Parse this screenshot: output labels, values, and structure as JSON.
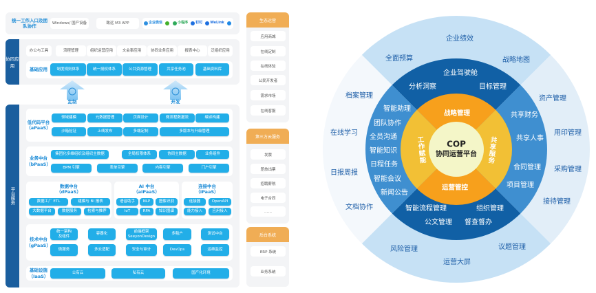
{
  "top_entry": {
    "title": "统一工作入口及团队协作",
    "devices": [
      "Windows/ 国产设备",
      "致远 M3 APP"
    ],
    "channels": [
      "企业微信",
      "小程序",
      "钉钉",
      "WeLink"
    ],
    "channel_icons": [
      "wecom-icon",
      "wechat-icon",
      "miniprogram-icon",
      "dingtalk-icon",
      "welink-icon",
      "feishu-icon"
    ]
  },
  "collab": {
    "tab": "协同应用",
    "apps": [
      "办公与工具",
      "流程管理",
      "组织运营应用",
      "文会事应用",
      "协同业务应用",
      "报表中心",
      "泛组织应用"
    ],
    "base_label": "基础应用",
    "base": [
      "制度规则体系",
      "统一授权体系",
      "公共资源管理",
      "共享任务池",
      "基础资料库"
    ]
  },
  "arrows": [
    "定制",
    "开发"
  ],
  "platform": {
    "tab": "平台服务",
    "apaas": {
      "label": "低代码平台",
      "sub": "（aPaaS）",
      "items": [
        "领域建模",
        "元数据管理",
        "页面设计",
        "微流程数据流",
        "编译构建",
        "沙箱验证",
        "上线发布",
        "多端定制",
        "多版本与升级管理"
      ]
    },
    "bpaas": {
      "label": "业务中台",
      "sub": "（bPaaS）",
      "items": [
        "集团化多维组织及组织主数据",
        "全局权限体系",
        "协同主数据",
        "业务组件",
        "BPM 引擎",
        "表单引擎",
        "内容引擎",
        "门户引擎"
      ]
    },
    "dpaas": {
      "label": "数据中台",
      "sub": "（dPaaS）",
      "items": [
        "数据工厂 ETL",
        "建模与 BI 报表",
        "大数据平台",
        "数据服务",
        "检索与推荐"
      ]
    },
    "aipaas": {
      "label": "AI 中台",
      "sub": "（aiPaaS）",
      "items": [
        "语音助手",
        "NLP",
        "图像识别",
        "IoT",
        "RPA",
        "知识图谱"
      ]
    },
    "ipaas": {
      "label": "连接中台",
      "sub": "（iPaaS）",
      "items": [
        "连接器",
        "OpenAPI",
        "能力接入",
        "应用接入"
      ]
    },
    "gpaas": {
      "label": "技术中台",
      "sub": "（gPaaS）",
      "items": [
        "统一架构\n及组件",
        "容器化",
        "前端框架\nSeeyonDesign",
        "多租户",
        "测试中台",
        "微服务",
        "多云适配",
        "安全与审计",
        "DevOps",
        "运维监控"
      ]
    },
    "iaas": {
      "label": "基础设施",
      "sub": "（IaaS）",
      "items": [
        "公有云",
        "私有云",
        "国产化环境"
      ]
    }
  },
  "side": {
    "eco": {
      "title": "生态运营",
      "items": [
        "应用商城",
        "在线定制",
        "在线体验",
        "公民开发者",
        "需求市场",
        "在线客服"
      ]
    },
    "third": {
      "title": "第三方云服务",
      "items": [
        "发票",
        "差旅出票",
        "招聘薪税",
        "电子合同",
        "……"
      ]
    },
    "backend": {
      "title": "后台系统",
      "items": [
        "ERP 系统",
        "业务系统"
      ]
    }
  },
  "wheel": {
    "center": {
      "line1": "COP",
      "line2": "协同运营平台"
    },
    "core": [
      "战略管理",
      "共享服务",
      "运营管控",
      "工作赋能"
    ],
    "middle": {
      "top": [
        "企业驾驶舱",
        "分析洞察",
        "目标管理"
      ],
      "left": [
        "智能助理",
        "团队协作",
        "全员沟通",
        "智能知识",
        "日程任务",
        "智能会议",
        "新闻公告"
      ],
      "right": [
        "共享财务",
        "共享人事",
        "合同管理",
        "项目管理"
      ],
      "bottom": [
        "智能流程管理",
        "组织管理",
        "公文管理",
        "督查督办"
      ]
    },
    "outer": {
      "top": [
        "企业绩效",
        "全面预算",
        "战略地图"
      ],
      "left": [
        "档案管理",
        "在线学习",
        "日报周报",
        "文档协作"
      ],
      "right": [
        "资产管理",
        "用印管理",
        "采购管理",
        "接待管理"
      ],
      "bottom": [
        "风险管理",
        "议题管理",
        "运营大屏"
      ]
    },
    "colors": {
      "outer_tb": "#c6e1f5",
      "outer_left": "#f4f8fc",
      "outer_right": "#e2eef8",
      "mid_tb": "#1160a5",
      "mid_lr": "#3f8fd0",
      "core_tb": "#f7a01c",
      "core_lr": "#f2c035",
      "center": "#f4f6c8",
      "outer_text": "#1f5fa8",
      "accent_blue": "#22aee8",
      "accent_orange": "#f0ad55"
    }
  }
}
